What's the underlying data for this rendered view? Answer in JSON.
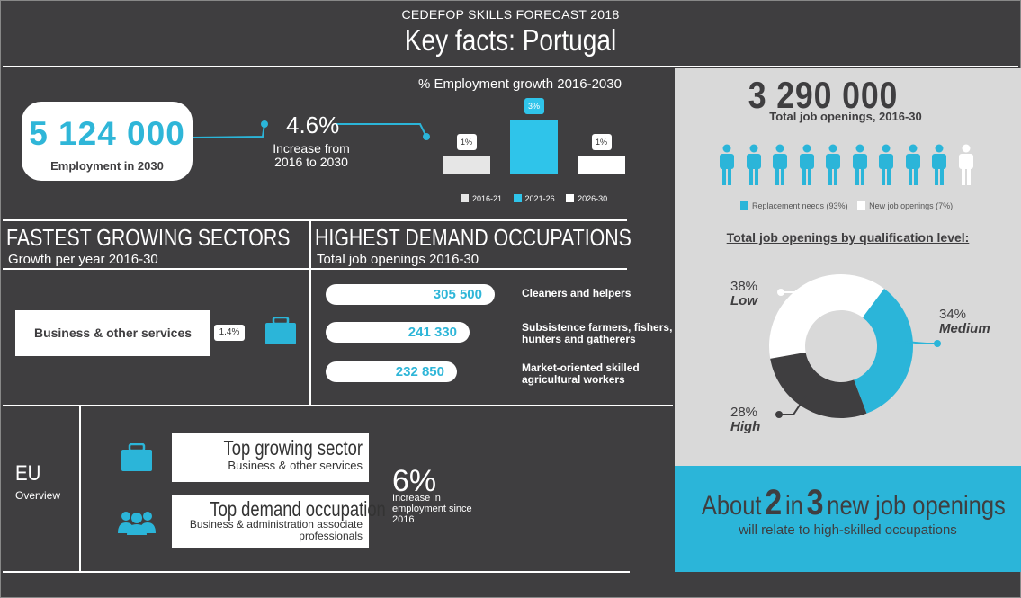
{
  "header": {
    "kicker": "CEDEFOP SKILLS FORECAST 2018",
    "title": "Key facts: Portugal"
  },
  "employment": {
    "value": "5 124 000",
    "label": "Employment in 2030",
    "growth": "4.6%",
    "growth_label": "Increase from 2016 to 2030"
  },
  "chart_data": {
    "type": "bar",
    "title": "% Employment growth 2016-2030",
    "categories": [
      "2016-21",
      "2021-26",
      "2026-30"
    ],
    "values": [
      1,
      3,
      1
    ],
    "labels": [
      "1%",
      "3%",
      "1%"
    ],
    "colors": [
      "#e6e6e6",
      "#2fc4ea",
      "#ffffff"
    ],
    "ylim": [
      0,
      3
    ]
  },
  "sectors": {
    "title": "FASTEST GROWING SECTORS",
    "subtitle": "Growth per year 2016-30",
    "name": "Business & other services",
    "growth": "1.4%"
  },
  "occupations": {
    "title": "HIGHEST DEMAND OCCUPATIONS",
    "subtitle": "Total job openings 2016-30",
    "items": [
      {
        "value": "305 500",
        "label": "Cleaners and helpers"
      },
      {
        "value": "241 330",
        "label": "Subsistence farmers, fishers, hunters and gatherers"
      },
      {
        "value": "232 850",
        "label": "Market-oriented skilled agricultural workers"
      }
    ]
  },
  "eu": {
    "title": "EU",
    "subtitle": "Overview",
    "sector_title": "Top growing sector",
    "sector_value": "Business & other services",
    "occ_title": "Top demand occupation",
    "occ_value": "Business & administration associate professionals",
    "growth": "6%",
    "growth_label": "Increase in employment since 2016"
  },
  "openings": {
    "value": "3 290 000",
    "label": "Total job openings, 2016-30",
    "people_total": 10,
    "people_replacement": 9,
    "legend_replacement": "Replacement needs (93%)",
    "legend_new": "New job openings (7%)",
    "qual_title": "Total job openings by qualification level:"
  },
  "qualification": [
    {
      "pct": "38%",
      "level": "Low",
      "share": 38,
      "color": "#ffffff"
    },
    {
      "pct": "34%",
      "level": "Medium",
      "share": 34,
      "color": "#2bb5d9"
    },
    {
      "pct": "28%",
      "level": "High",
      "share": 28,
      "color": "#3f3e40"
    }
  ],
  "about": {
    "about": "About",
    "n1": "2",
    "in": "in",
    "n2": "3",
    "rest": "new job openings",
    "sub": "will relate to high-skilled occupations"
  },
  "colors": {
    "accent": "#2bb5d9",
    "dark": "#3f3e40",
    "light": "#d9d9d9"
  }
}
